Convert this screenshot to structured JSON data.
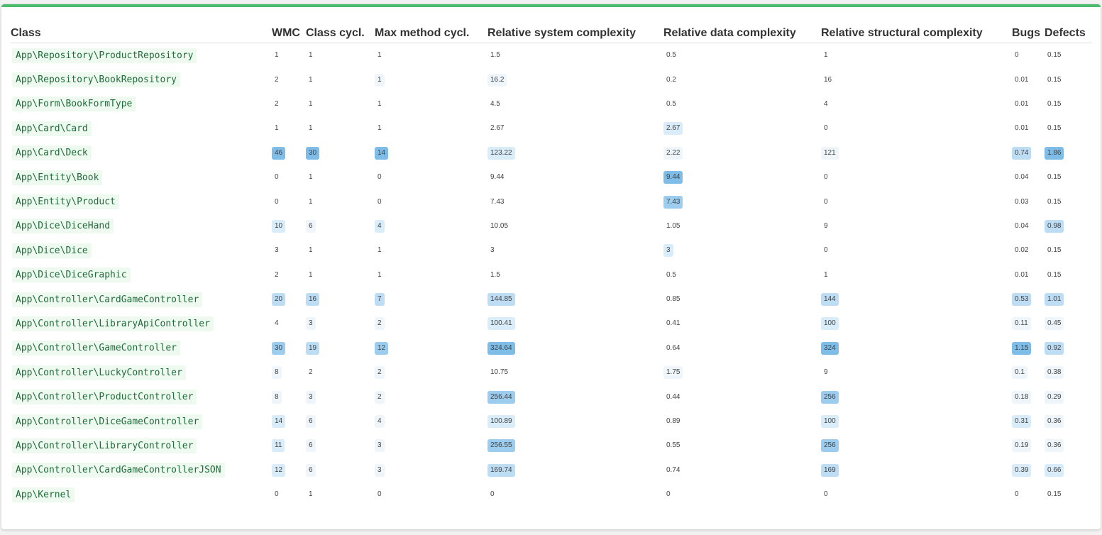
{
  "table": {
    "headers": [
      "Class",
      "WMC",
      "Class cycl.",
      "Max method cycl.",
      "Relative system complexity",
      "Relative data complexity",
      "Relative structural complexity",
      "Bugs",
      "Defects"
    ],
    "rows": [
      {
        "name": "App\\Repository\\ProductRepository",
        "wmc": "1",
        "ccycl": "1",
        "mcycl": "1",
        "rsys": "1.5",
        "rdata": "0.5",
        "rstruct": "1",
        "bugs": "0",
        "defects": "0.15",
        "lv": [
          0,
          0,
          0,
          0,
          0,
          0,
          0,
          0
        ]
      },
      {
        "name": "App\\Repository\\BookRepository",
        "wmc": "2",
        "ccycl": "1",
        "mcycl": "1",
        "rsys": "16.2",
        "rdata": "0.2",
        "rstruct": "16",
        "bugs": "0.01",
        "defects": "0.15",
        "lv": [
          0,
          0,
          1,
          1,
          0,
          0,
          0,
          0
        ]
      },
      {
        "name": "App\\Form\\BookFormType",
        "wmc": "2",
        "ccycl": "1",
        "mcycl": "1",
        "rsys": "4.5",
        "rdata": "0.5",
        "rstruct": "4",
        "bugs": "0.01",
        "defects": "0.15",
        "lv": [
          0,
          0,
          0,
          0,
          0,
          0,
          0,
          0
        ]
      },
      {
        "name": "App\\Card\\Card",
        "wmc": "1",
        "ccycl": "1",
        "mcycl": "1",
        "rsys": "2.67",
        "rdata": "2.67",
        "rstruct": "0",
        "bugs": "0.01",
        "defects": "0.15",
        "lv": [
          0,
          0,
          0,
          0,
          2,
          0,
          0,
          0
        ]
      },
      {
        "name": "App\\Card\\Deck",
        "wmc": "46",
        "ccycl": "30",
        "mcycl": "14",
        "rsys": "123.22",
        "rdata": "2.22",
        "rstruct": "121",
        "bugs": "0.74",
        "defects": "1.86",
        "lv": [
          5,
          5,
          5,
          2,
          1,
          1,
          3,
          5
        ]
      },
      {
        "name": "App\\Entity\\Book",
        "wmc": "0",
        "ccycl": "1",
        "mcycl": "0",
        "rsys": "9.44",
        "rdata": "9.44",
        "rstruct": "0",
        "bugs": "0.04",
        "defects": "0.15",
        "lv": [
          0,
          0,
          0,
          0,
          5,
          0,
          0,
          0
        ]
      },
      {
        "name": "App\\Entity\\Product",
        "wmc": "0",
        "ccycl": "1",
        "mcycl": "0",
        "rsys": "7.43",
        "rdata": "7.43",
        "rstruct": "0",
        "bugs": "0.03",
        "defects": "0.15",
        "lv": [
          0,
          0,
          0,
          0,
          4,
          0,
          0,
          0
        ]
      },
      {
        "name": "App\\Dice\\DiceHand",
        "wmc": "10",
        "ccycl": "6",
        "mcycl": "4",
        "rsys": "10.05",
        "rdata": "1.05",
        "rstruct": "9",
        "bugs": "0.04",
        "defects": "0.98",
        "lv": [
          2,
          1,
          2,
          0,
          0,
          0,
          0,
          3
        ]
      },
      {
        "name": "App\\Dice\\Dice",
        "wmc": "3",
        "ccycl": "1",
        "mcycl": "1",
        "rsys": "3",
        "rdata": "3",
        "rstruct": "0",
        "bugs": "0.02",
        "defects": "0.15",
        "lv": [
          0,
          0,
          0,
          0,
          2,
          0,
          0,
          0
        ]
      },
      {
        "name": "App\\Dice\\DiceGraphic",
        "wmc": "2",
        "ccycl": "1",
        "mcycl": "1",
        "rsys": "1.5",
        "rdata": "0.5",
        "rstruct": "1",
        "bugs": "0.01",
        "defects": "0.15",
        "lv": [
          0,
          0,
          0,
          0,
          0,
          0,
          0,
          0
        ]
      },
      {
        "name": "App\\Controller\\CardGameController",
        "wmc": "20",
        "ccycl": "16",
        "mcycl": "7",
        "rsys": "144.85",
        "rdata": "0.85",
        "rstruct": "144",
        "bugs": "0.53",
        "defects": "1.01",
        "lv": [
          3,
          3,
          3,
          3,
          0,
          3,
          3,
          3
        ]
      },
      {
        "name": "App\\Controller\\LibraryApiController",
        "wmc": "4",
        "ccycl": "3",
        "mcycl": "2",
        "rsys": "100.41",
        "rdata": "0.41",
        "rstruct": "100",
        "bugs": "0.11",
        "defects": "0.45",
        "lv": [
          0,
          1,
          1,
          2,
          0,
          2,
          1,
          1
        ]
      },
      {
        "name": "App\\Controller\\GameController",
        "wmc": "30",
        "ccycl": "19",
        "mcycl": "12",
        "rsys": "324.64",
        "rdata": "0.64",
        "rstruct": "324",
        "bugs": "1.15",
        "defects": "0.92",
        "lv": [
          4,
          3,
          4,
          5,
          0,
          5,
          5,
          3
        ]
      },
      {
        "name": "App\\Controller\\LuckyController",
        "wmc": "8",
        "ccycl": "2",
        "mcycl": "2",
        "rsys": "10.75",
        "rdata": "1.75",
        "rstruct": "9",
        "bugs": "0.1",
        "defects": "0.38",
        "lv": [
          1,
          0,
          1,
          0,
          1,
          0,
          1,
          1
        ]
      },
      {
        "name": "App\\Controller\\ProductController",
        "wmc": "8",
        "ccycl": "3",
        "mcycl": "2",
        "rsys": "256.44",
        "rdata": "0.44",
        "rstruct": "256",
        "bugs": "0.18",
        "defects": "0.29",
        "lv": [
          1,
          1,
          1,
          4,
          0,
          4,
          1,
          1
        ]
      },
      {
        "name": "App\\Controller\\DiceGameController",
        "wmc": "14",
        "ccycl": "6",
        "mcycl": "4",
        "rsys": "100.89",
        "rdata": "0.89",
        "rstruct": "100",
        "bugs": "0.31",
        "defects": "0.36",
        "lv": [
          2,
          1,
          1,
          2,
          0,
          2,
          2,
          1
        ]
      },
      {
        "name": "App\\Controller\\LibraryController",
        "wmc": "11",
        "ccycl": "6",
        "mcycl": "3",
        "rsys": "256.55",
        "rdata": "0.55",
        "rstruct": "256",
        "bugs": "0.19",
        "defects": "0.36",
        "lv": [
          2,
          1,
          1,
          4,
          0,
          4,
          1,
          1
        ]
      },
      {
        "name": "App\\Controller\\CardGameControllerJSON",
        "wmc": "12",
        "ccycl": "6",
        "mcycl": "3",
        "rsys": "169.74",
        "rdata": "0.74",
        "rstruct": "169",
        "bugs": "0.39",
        "defects": "0.66",
        "lv": [
          2,
          1,
          1,
          3,
          0,
          3,
          2,
          2
        ]
      },
      {
        "name": "App\\Kernel",
        "wmc": "0",
        "ccycl": "1",
        "mcycl": "0",
        "rsys": "0",
        "rdata": "0",
        "rstruct": "0",
        "bugs": "0",
        "defects": "0.15",
        "lv": [
          0,
          0,
          0,
          0,
          0,
          0,
          0,
          0
        ]
      }
    ]
  }
}
